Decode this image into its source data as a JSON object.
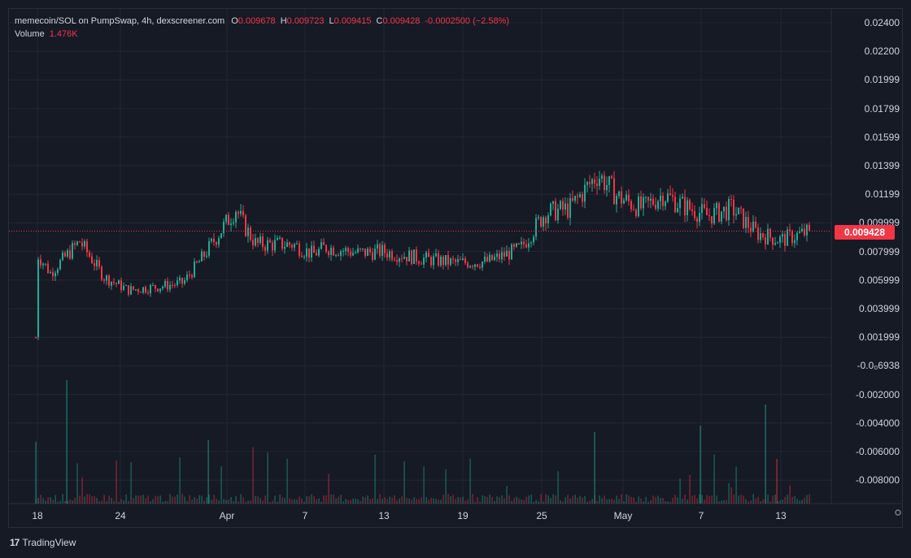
{
  "legend": {
    "symbol": "memecoin/SOL on PumpSwap, 4h, dexscreener.com",
    "o_label": "O",
    "o_value": "0.009678",
    "h_label": "H",
    "h_value": "0.009723",
    "l_label": "L",
    "l_value": "0.009415",
    "c_label": "C",
    "c_value": "0.009428",
    "change": "-0.0002500 (−2.58%)",
    "volume_label": "Volume",
    "volume_value": "1.476K"
  },
  "price_axis": {
    "labels": [
      "0.02400",
      "0.02200",
      "0.01999",
      "0.01799",
      "0.01599",
      "0.01399",
      "0.01199",
      "0.009999",
      "0.007999",
      "0.005999",
      "0.003999",
      "0.001999",
      "-0.0₀6938",
      "-0.002000",
      "-0.004000",
      "-0.006000",
      "-0.008000"
    ],
    "current_price": "0.009428"
  },
  "time_axis": {
    "labels": [
      "18",
      "24",
      "Apr",
      "7",
      "13",
      "19",
      "25",
      "May",
      "7",
      "13"
    ]
  },
  "branding": {
    "logo": "17",
    "name": "TradingView"
  },
  "colors": {
    "up": "#22ab94",
    "down": "#f23645",
    "grid": "#232733",
    "background": "#161a25"
  },
  "chart_data": {
    "type": "candlestick",
    "interval": "4h",
    "ylim": [
      -0.0098,
      0.0245
    ],
    "anchors": [
      {
        "x": "Mar 18",
        "close": 0.002
      },
      {
        "x": "Mar 18",
        "close": 0.0078
      },
      {
        "x": "Mar 19",
        "close": 0.0065
      },
      {
        "x": "Mar 21",
        "close": 0.0087
      },
      {
        "x": "Mar 23",
        "close": 0.0062
      },
      {
        "x": "Mar 25",
        "close": 0.0053
      },
      {
        "x": "Mar 27",
        "close": 0.0055
      },
      {
        "x": "Mar 30",
        "close": 0.0058
      },
      {
        "x": "Mar 31",
        "close": 0.0075
      },
      {
        "x": "Apr 1",
        "close": 0.011
      },
      {
        "x": "Apr 2",
        "close": 0.0098
      },
      {
        "x": "Apr 3",
        "close": 0.0085
      },
      {
        "x": "Apr 6",
        "close": 0.0085
      },
      {
        "x": "Apr 7",
        "close": 0.0078
      },
      {
        "x": "Apr 9",
        "close": 0.0083
      },
      {
        "x": "Apr 12",
        "close": 0.0079
      },
      {
        "x": "Apr 14",
        "close": 0.008
      },
      {
        "x": "Apr 16",
        "close": 0.0075
      },
      {
        "x": "Apr 19",
        "close": 0.0072
      },
      {
        "x": "Apr 22",
        "close": 0.0073
      },
      {
        "x": "Apr 24",
        "close": 0.0082
      },
      {
        "x": "Apr 25",
        "close": 0.0107
      },
      {
        "x": "Apr 27",
        "close": 0.011
      },
      {
        "x": "Apr 29",
        "close": 0.0134
      },
      {
        "x": "Apr 30",
        "close": 0.0118
      },
      {
        "x": "May 2",
        "close": 0.011
      },
      {
        "x": "May 4",
        "close": 0.012
      },
      {
        "x": "May 5",
        "close": 0.0112
      },
      {
        "x": "May 7",
        "close": 0.0105
      },
      {
        "x": "May 9",
        "close": 0.011
      },
      {
        "x": "May 11",
        "close": 0.0093
      },
      {
        "x": "May 13",
        "close": 0.0088
      },
      {
        "x": "May 15",
        "close": 0.0094
      }
    ]
  }
}
